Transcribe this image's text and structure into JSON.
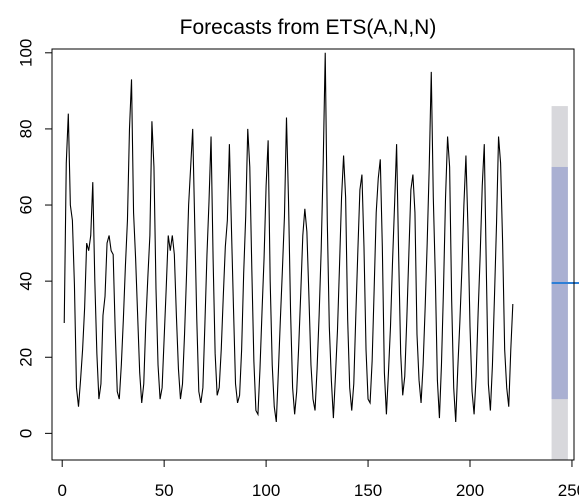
{
  "chart_data": {
    "type": "line",
    "title": "Forecasts from ETS(A,N,N)",
    "xlabel": "",
    "ylabel": "",
    "xlim": [
      -5,
      251
    ],
    "ylim": [
      -7,
      101
    ],
    "x_ticks": [
      0,
      50,
      100,
      150,
      200,
      250
    ],
    "y_ticks": [
      0,
      20,
      40,
      60,
      80,
      100
    ],
    "grid": false,
    "legend": "none",
    "series": [
      {
        "kind": "observed",
        "color": "#000000",
        "x_start": 1,
        "values": [
          29,
          71,
          84,
          60,
          56,
          39,
          12,
          7,
          14,
          22,
          33,
          50,
          48,
          52,
          66,
          40,
          21,
          9,
          13,
          31,
          36,
          50,
          52,
          48,
          47,
          27,
          11,
          9,
          18,
          30,
          44,
          56,
          80,
          93,
          58,
          46,
          31,
          16,
          8,
          13,
          29,
          41,
          52,
          82,
          70,
          38,
          18,
          9,
          12,
          25,
          38,
          52,
          48,
          52,
          47,
          31,
          17,
          9,
          13,
          26,
          42,
          60,
          70,
          80,
          55,
          30,
          11,
          8,
          12,
          29,
          47,
          61,
          78,
          46,
          21,
          10,
          12,
          22,
          36,
          49,
          56,
          76,
          54,
          33,
          13,
          8,
          10,
          22,
          42,
          57,
          80,
          70,
          43,
          19,
          6,
          5,
          17,
          32,
          46,
          65,
          77,
          40,
          18,
          7,
          3,
          16,
          30,
          43,
          57,
          83,
          61,
          32,
          12,
          5,
          11,
          23,
          37,
          52,
          59,
          53,
          36,
          18,
          9,
          6,
          17,
          31,
          48,
          71,
          100,
          56,
          28,
          14,
          4,
          15,
          27,
          44,
          62,
          73,
          62,
          30,
          12,
          6,
          13,
          31,
          48,
          64,
          68,
          49,
          22,
          9,
          8,
          19,
          38,
          58,
          67,
          72,
          49,
          16,
          5,
          16,
          28,
          45,
          60,
          76,
          47,
          21,
          10,
          15,
          30,
          47,
          64,
          68,
          58,
          26,
          14,
          8,
          18,
          33,
          50,
          70,
          95,
          62,
          41,
          14,
          4,
          18,
          38,
          62,
          78,
          70,
          35,
          12,
          3,
          17,
          29,
          43,
          60,
          73,
          54,
          28,
          11,
          5,
          15,
          32,
          47,
          65,
          76,
          43,
          13,
          6,
          18,
          36,
          55,
          78,
          71,
          50,
          22,
          12,
          7,
          22,
          34
        ],
        "note": ""
      },
      {
        "kind": "forecast_point",
        "color": "#2e7fd6",
        "x": [
          240,
          248
        ],
        "value": 39.5
      }
    ],
    "intervals": [
      {
        "level": "95",
        "color": "#d8d8dc",
        "x": [
          240,
          248
        ],
        "lower": -7,
        "upper": 86
      },
      {
        "level": "80",
        "color": "#aab0d2",
        "x": [
          240,
          248
        ],
        "lower": 9,
        "upper": 70
      }
    ]
  }
}
